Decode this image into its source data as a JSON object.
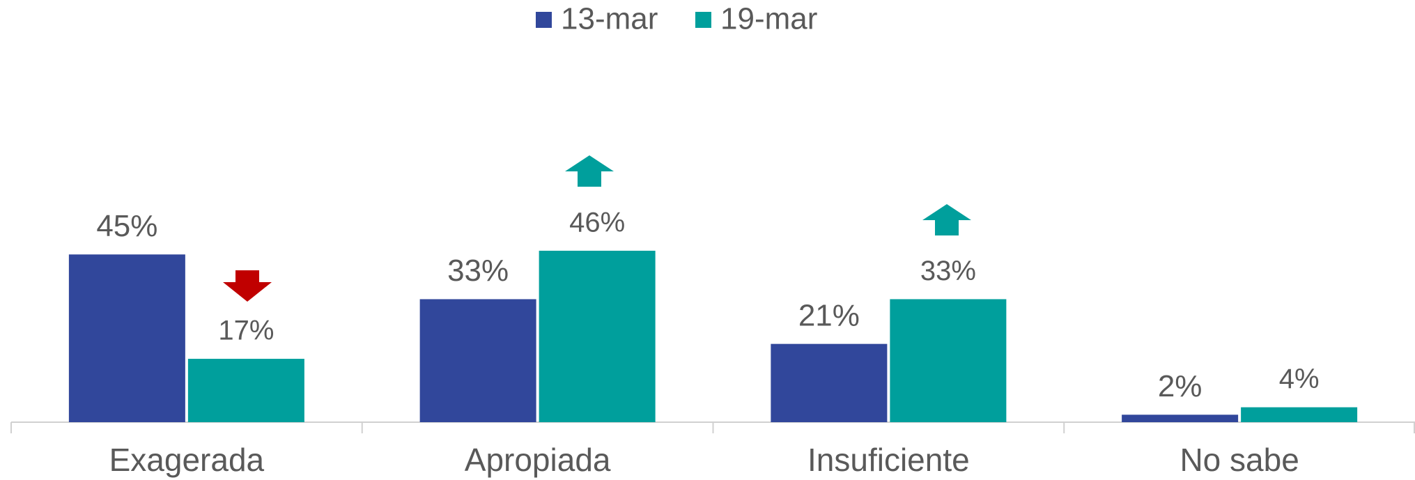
{
  "chart_data": {
    "type": "bar",
    "categories": [
      "Exagerada",
      "Apropiada",
      "Insuficiente",
      "No sabe"
    ],
    "series": [
      {
        "name": "13-mar",
        "color": "#31479b",
        "values": [
          45,
          33,
          21,
          2
        ],
        "value_labels": [
          "45%",
          "33%",
          "21%",
          "2%"
        ]
      },
      {
        "name": "19-mar",
        "color": "#009f9c",
        "values": [
          17,
          46,
          33,
          4
        ],
        "value_labels": [
          "17%",
          "46%",
          "33%",
          "4%"
        ]
      }
    ],
    "legend": "top"
  }
}
